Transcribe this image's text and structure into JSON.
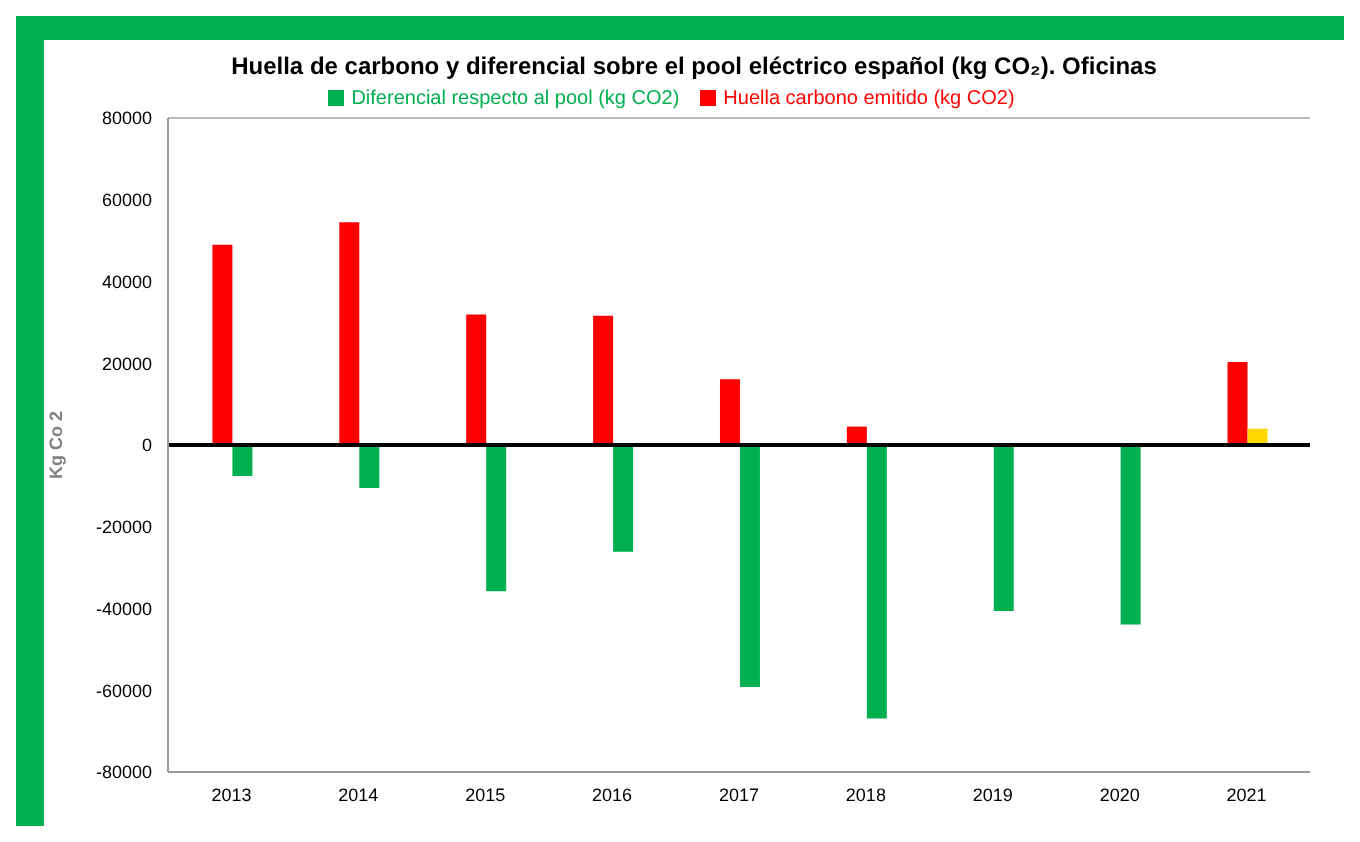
{
  "chart_data": {
    "type": "bar",
    "title": "Huella de carbono y diferencial sobre el pool eléctrico español (kg CO₂). Oficinas",
    "ylabel": "Kg Co 2",
    "categories": [
      "2013",
      "2014",
      "2015",
      "2016",
      "2017",
      "2018",
      "2019",
      "2020",
      "2021"
    ],
    "series": [
      {
        "name": "Huella carbono emitido (kg CO2)",
        "color": "#ff0000",
        "values": [
          49000,
          54500,
          31900,
          31600,
          16100,
          4500,
          0,
          0,
          20300
        ]
      },
      {
        "name": "Diferencial respecto al pool (kg CO2)",
        "color": "#00b050",
        "colors": [
          "#00b050",
          "#00b050",
          "#00b050",
          "#00b050",
          "#00b050",
          "#00b050",
          "#00b050",
          "#00b050",
          "#ffd700"
        ],
        "values": [
          -7600,
          -10500,
          -35800,
          -26100,
          -59200,
          -66900,
          -40600,
          -43900,
          4000
        ]
      }
    ],
    "ylim": [
      -80000,
      80000
    ],
    "yticks": [
      -80000,
      -60000,
      -40000,
      -20000,
      0,
      20000,
      40000,
      60000,
      80000
    ],
    "grid": "y",
    "legend": "top"
  }
}
